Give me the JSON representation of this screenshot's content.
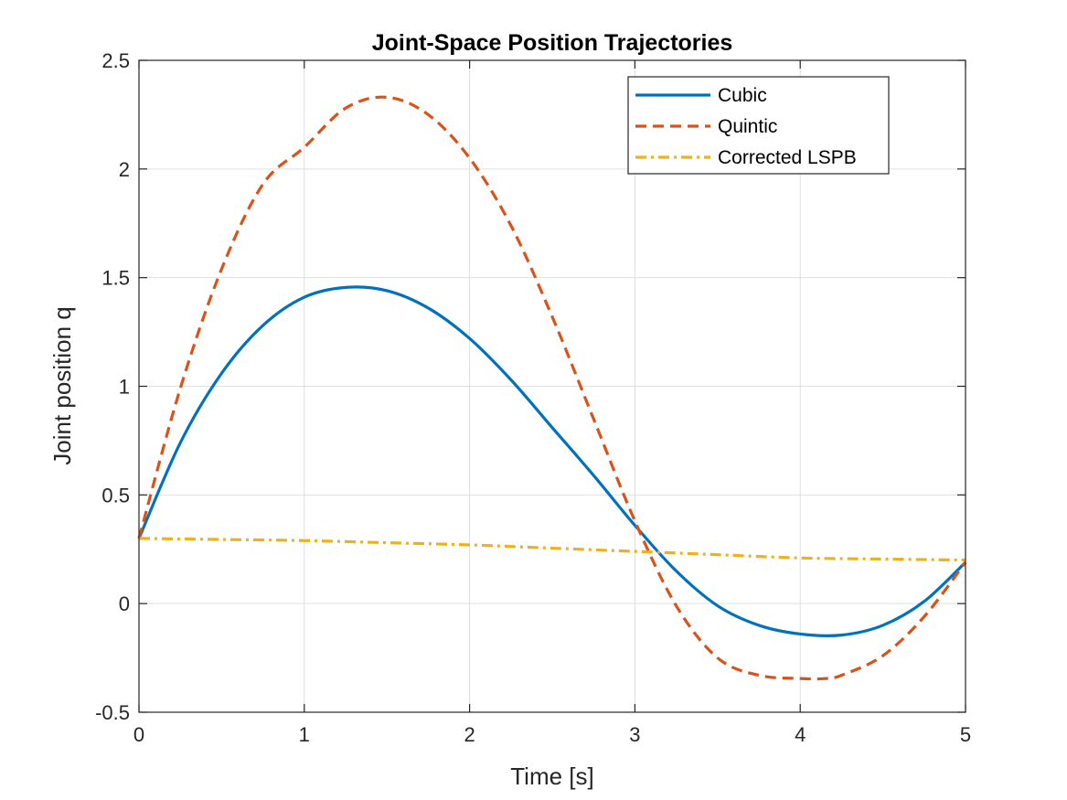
{
  "chart_data": {
    "type": "line",
    "title": "Joint-Space Position Trajectories",
    "xlabel": "Time [s]",
    "ylabel": "Joint position q",
    "xlim": [
      0,
      5
    ],
    "ylim": [
      -0.5,
      2.5
    ],
    "xticks": [
      0,
      1,
      2,
      3,
      4,
      5
    ],
    "xtick_labels": [
      "0",
      "1",
      "2",
      "3",
      "4",
      "5"
    ],
    "yticks": [
      -0.5,
      0,
      0.5,
      1,
      1.5,
      2,
      2.5
    ],
    "ytick_labels": [
      "-0.5",
      "0",
      "0.5",
      "1",
      "1.5",
      "2",
      "2.5"
    ],
    "grid": true,
    "legend_position": "top-right",
    "series": [
      {
        "name": "Cubic",
        "color": "#0072BD",
        "style": "solid",
        "x": [
          0,
          0.25,
          0.5,
          0.75,
          1.0,
          1.25,
          1.5,
          1.75,
          2.0,
          2.25,
          2.5,
          2.75,
          3.0,
          3.25,
          3.5,
          3.75,
          4.0,
          4.25,
          4.5,
          4.75,
          5.0
        ],
        "y": [
          0.3,
          0.74,
          1.06,
          1.28,
          1.41,
          1.455,
          1.44,
          1.36,
          1.22,
          1.03,
          0.81,
          0.59,
          0.36,
          0.15,
          -0.01,
          -0.1,
          -0.14,
          -0.145,
          -0.1,
          0.01,
          0.19
        ]
      },
      {
        "name": "Quintic",
        "color": "#D95319",
        "style": "dashed",
        "x": [
          0,
          0.25,
          0.5,
          0.75,
          1.0,
          1.25,
          1.5,
          1.75,
          2.0,
          2.25,
          2.5,
          2.75,
          3.0,
          3.25,
          3.5,
          3.75,
          4.0,
          4.15,
          4.25,
          4.5,
          4.75,
          5.0
        ],
        "y": [
          0.3,
          0.99,
          1.54,
          1.93,
          2.1,
          2.28,
          2.33,
          2.25,
          2.05,
          1.74,
          1.32,
          0.85,
          0.38,
          -0.01,
          -0.25,
          -0.33,
          -0.345,
          -0.345,
          -0.33,
          -0.24,
          -0.06,
          0.19
        ]
      },
      {
        "name": "Corrected LSPB",
        "color": "#EDB120",
        "style": "dashdot",
        "x": [
          0,
          0.5,
          1.0,
          1.5,
          2.0,
          2.5,
          3.0,
          3.5,
          4.0,
          4.5,
          5.0
        ],
        "y": [
          0.3,
          0.295,
          0.29,
          0.28,
          0.27,
          0.255,
          0.24,
          0.225,
          0.21,
          0.205,
          0.2
        ]
      }
    ]
  }
}
